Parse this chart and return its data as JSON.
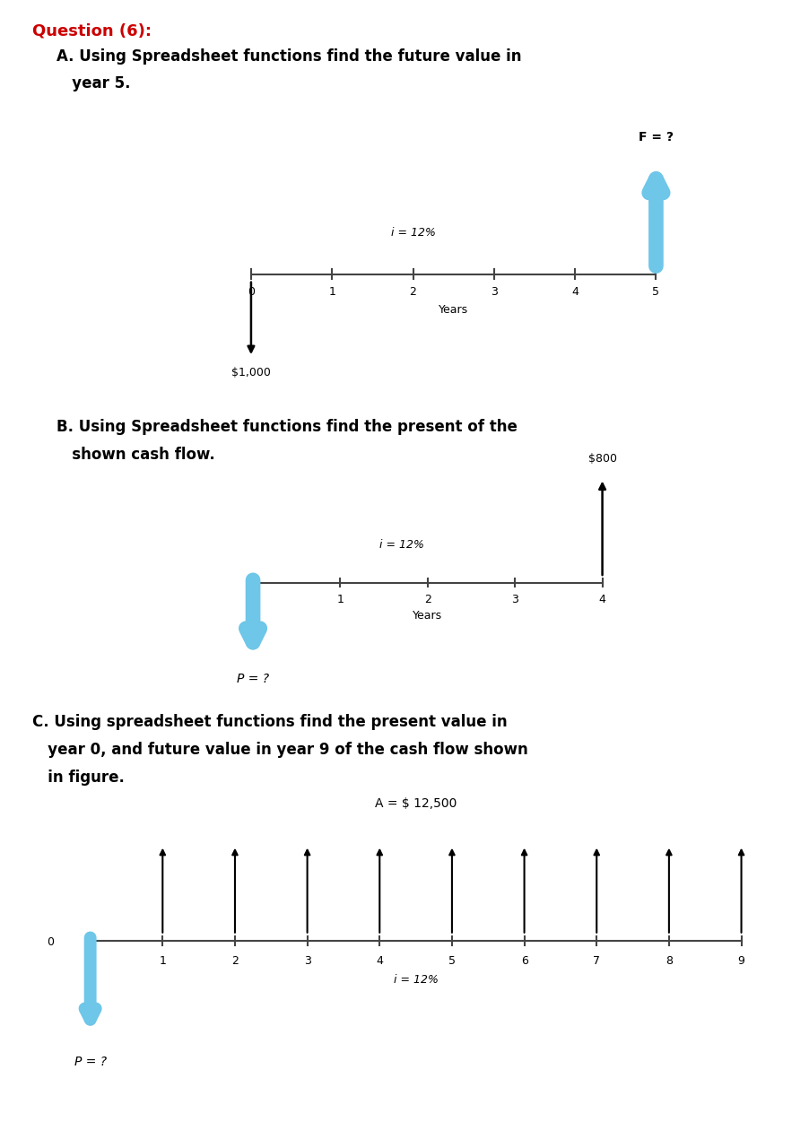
{
  "bg_color": "#ffffff",
  "title_color": "#cc0000",
  "title_text": "Question (6):",
  "part_a": {
    "heading_line1": "A. Using Spreadsheet functions find the future value in",
    "heading_line2": "   year 5.",
    "interest_label": "i = 12%",
    "pv_label": "$1,000",
    "fv_label": "F = ?",
    "fv_color": "#6ec6e8",
    "pv_arrow_color": "#000000",
    "fv_arrow_color": "#6ec6e8"
  },
  "part_b": {
    "heading_line1": "B. Using Spreadsheet functions find the present of the",
    "heading_line2": "   shown cash flow.",
    "interest_label": "i = 12%",
    "fv_label": "$800",
    "pv_label": "P = ?",
    "fv_arrow_color": "#000000",
    "pv_arrow_color": "#6ec6e8"
  },
  "part_c": {
    "heading_line1": "C. Using spreadsheet functions find the present value in",
    "heading_line2": "   year 0, and future value in year 9 of the cash flow shown",
    "heading_line3": "   in figure.",
    "interest_label": "i = 12%",
    "annuity_label": "A = $ 12,500",
    "pv_label": "P = ?",
    "pv_arrow_color": "#6ec6e8",
    "annuity_arrow_color": "#000000"
  }
}
